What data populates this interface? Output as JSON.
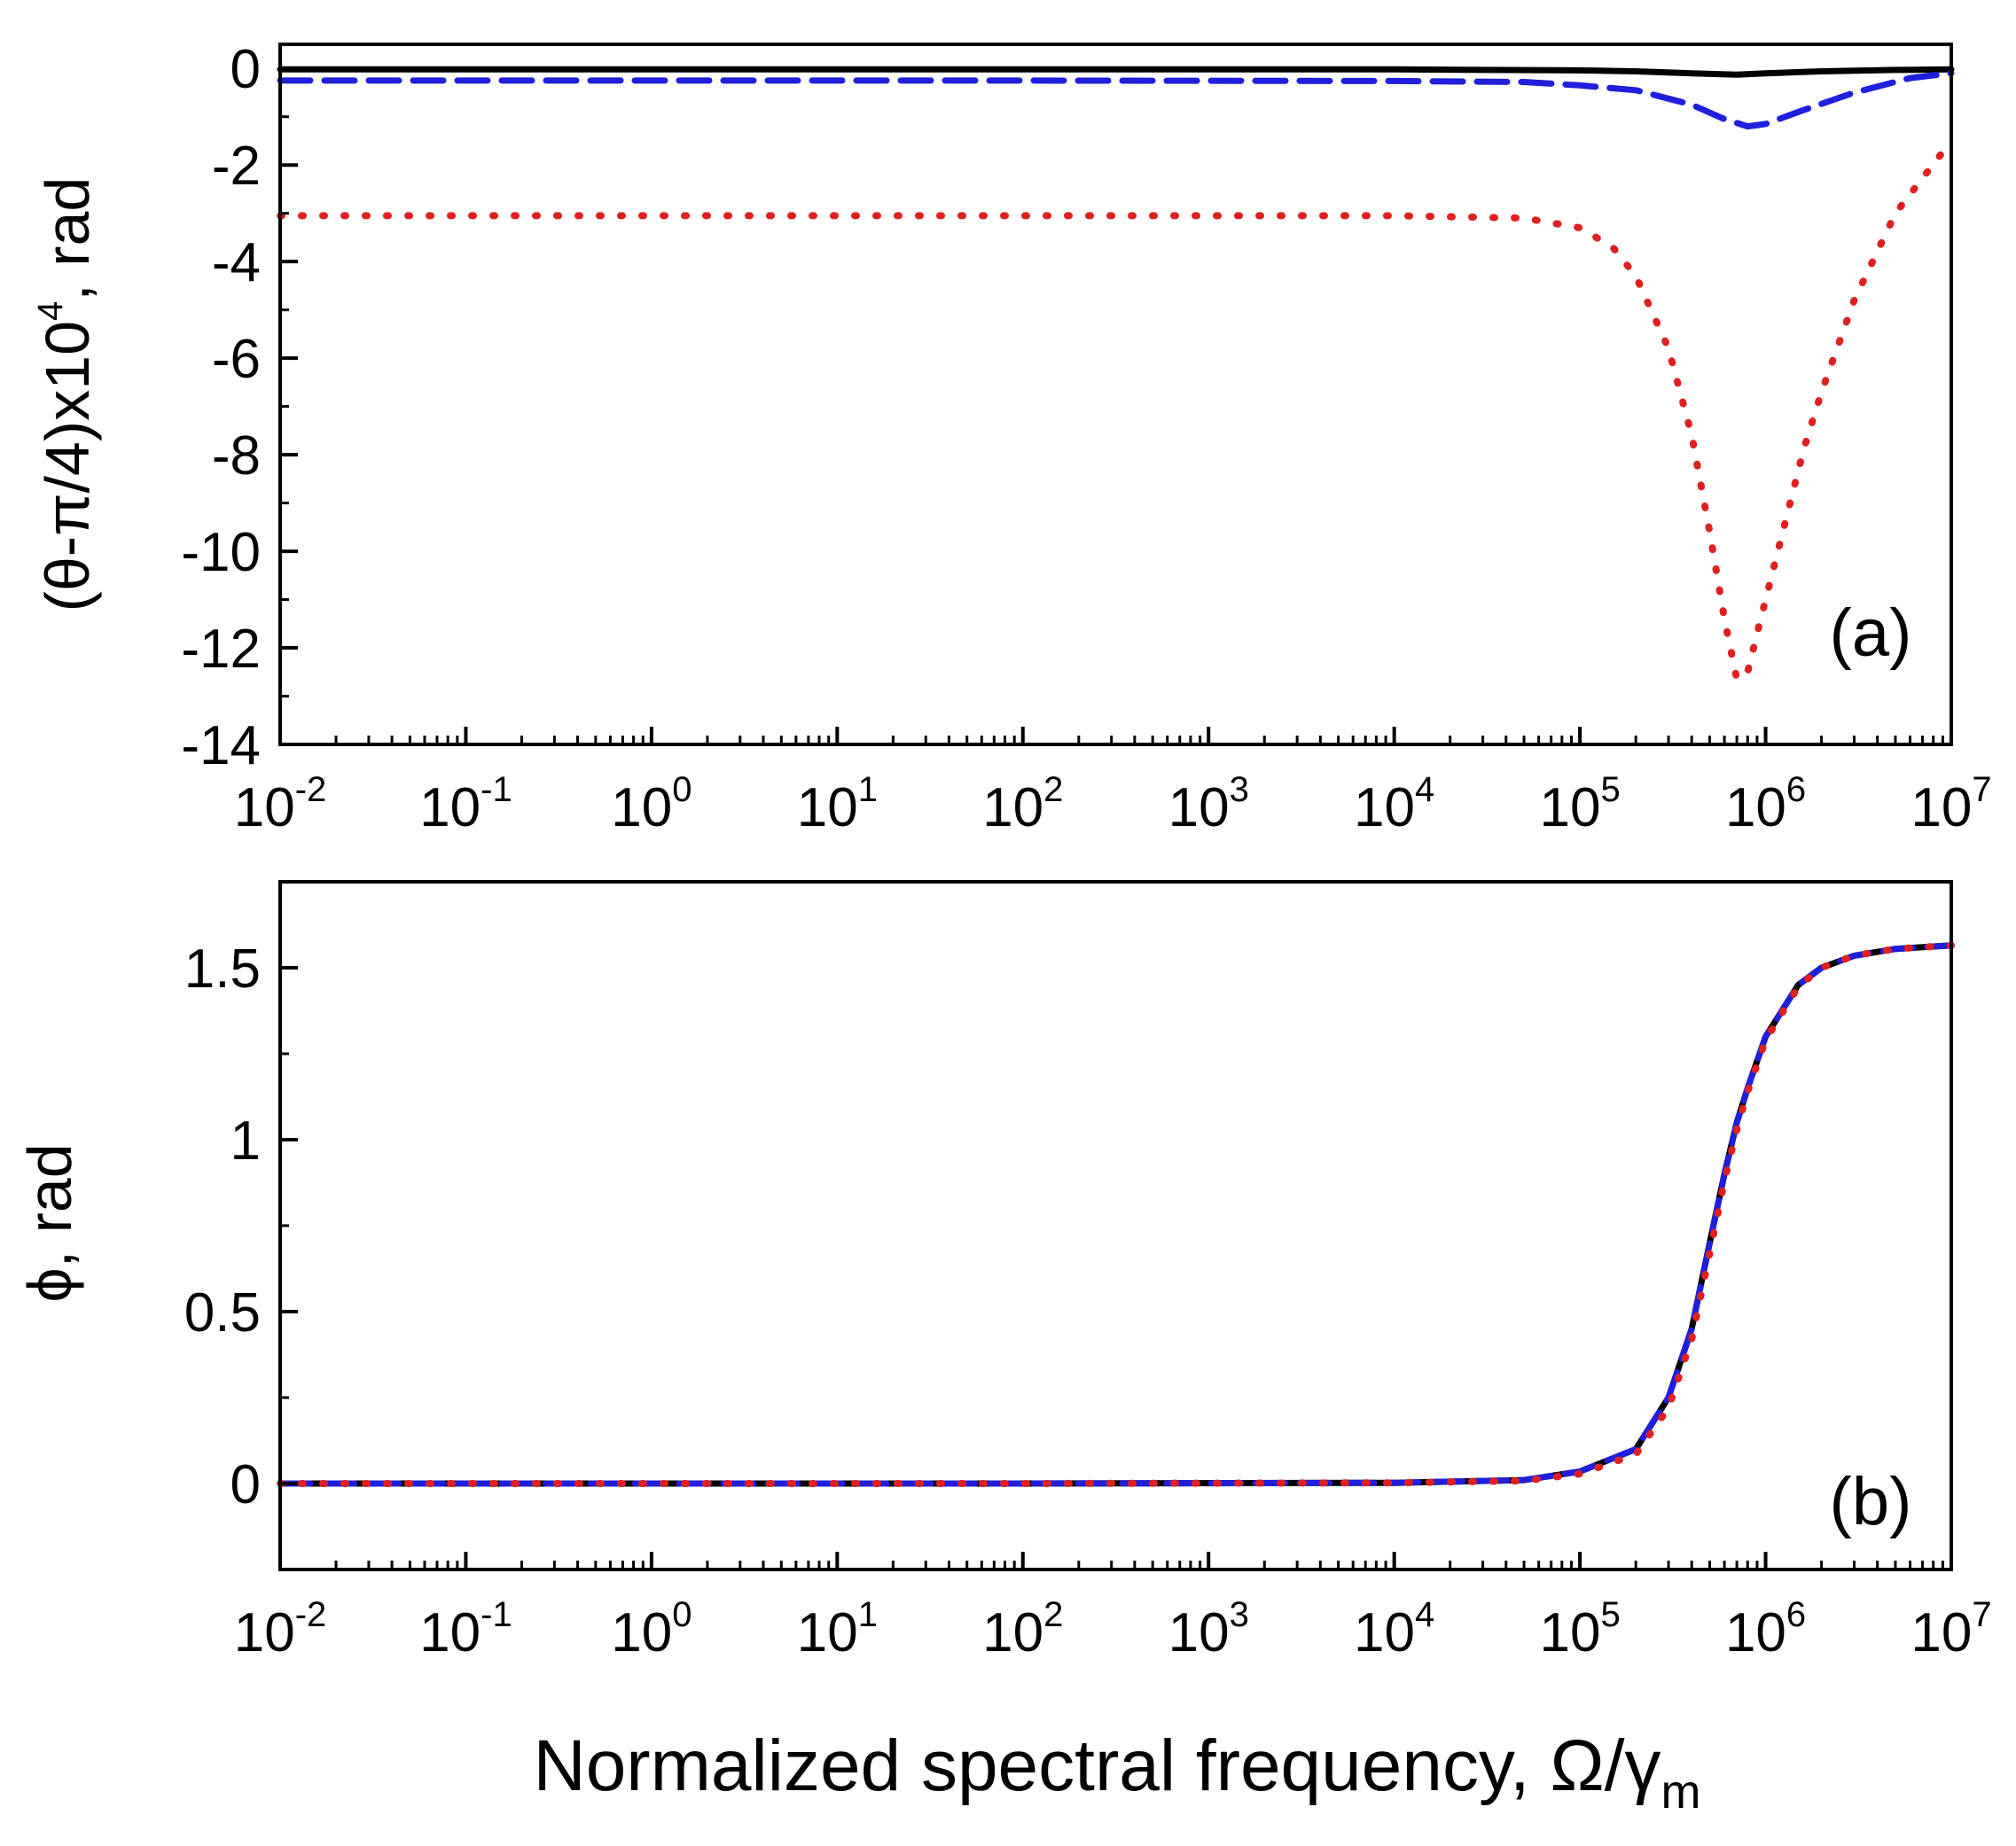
{
  "chart_data": [
    {
      "type": "line",
      "panel_label": "(a)",
      "ylabel": "(θ-π/4)x10",
      "ylabel_exponent": "4",
      "ylabel_unit": ", rad",
      "xscale": "log",
      "xlim": [
        0.01,
        10000000
      ],
      "ylim": [
        -14,
        0.5
      ],
      "yticks": [
        0,
        -2,
        -4,
        -6,
        -8,
        -10,
        -12,
        -14
      ],
      "ytick_labels": [
        "0",
        "-2",
        "-4",
        "-6",
        "-8",
        "-10",
        "-12",
        "-14"
      ],
      "xtick_exponents": [
        "-2",
        "-1",
        "0",
        "1",
        "2",
        "3",
        "4",
        "5",
        "6",
        "7"
      ],
      "series": [
        {
          "name": "solid",
          "color": "#000000",
          "style": "solid",
          "x": [
            0.01,
            1,
            100,
            10000,
            100000,
            200000,
            400000,
            700000,
            1000000,
            2000000,
            5000000,
            10000000
          ],
          "y": [
            -0.02,
            -0.02,
            -0.02,
            -0.02,
            -0.04,
            -0.06,
            -0.1,
            -0.13,
            -0.1,
            -0.06,
            -0.03,
            -0.02
          ]
        },
        {
          "name": "dashed",
          "color": "#1f1fdc",
          "style": "dashed",
          "x": [
            0.01,
            1,
            100,
            10000,
            50000,
            100000,
            200000,
            400000,
            600000,
            800000,
            1000000,
            1500000,
            3000000,
            6000000,
            10000000
          ],
          "y": [
            -0.25,
            -0.25,
            -0.25,
            -0.26,
            -0.28,
            -0.35,
            -0.45,
            -0.75,
            -1.05,
            -1.2,
            -1.15,
            -0.9,
            -0.5,
            -0.2,
            -0.1
          ]
        },
        {
          "name": "dotted",
          "color": "#e02020",
          "style": "dotted",
          "x": [
            0.01,
            1,
            100,
            10000,
            50000,
            100000,
            150000,
            200000,
            300000,
            400000,
            500000,
            600000,
            700000,
            800000,
            900000,
            1200000,
            1600000,
            2000000,
            3000000,
            5000000,
            10000000
          ],
          "y": [
            -3.05,
            -3.05,
            -3.05,
            -3.05,
            -3.1,
            -3.3,
            -3.7,
            -4.3,
            -5.8,
            -7.6,
            -9.6,
            -11.4,
            -12.65,
            -12.5,
            -11.7,
            -9.8,
            -7.9,
            -6.7,
            -4.8,
            -3.0,
            -1.5
          ]
        }
      ]
    },
    {
      "type": "line",
      "panel_label": "(b)",
      "ylabel": "ϕ, rad",
      "xlabel": "Normalized spectral frequency, Ω/γ",
      "xlabel_subscript": "m",
      "xscale": "log",
      "xlim": [
        0.01,
        10000000
      ],
      "ylim": [
        -0.25,
        1.75
      ],
      "yticks": [
        0,
        0.5,
        1,
        1.5
      ],
      "ytick_labels": [
        "0",
        "0.5",
        "1",
        "1.5"
      ],
      "xtick_exponents": [
        "-2",
        "-1",
        "0",
        "1",
        "2",
        "3",
        "4",
        "5",
        "6",
        "7"
      ],
      "series": [
        {
          "name": "solid",
          "color": "#000000",
          "style": "solid",
          "x": [
            0.01,
            1,
            100,
            10000,
            50000,
            100000,
            200000,
            300000,
            400000,
            500000,
            600000,
            700000,
            800000,
            1000000,
            1500000,
            2000000,
            3000000,
            5000000,
            10000000
          ],
          "y": [
            0,
            0,
            0,
            0.002,
            0.01,
            0.035,
            0.1,
            0.25,
            0.45,
            0.7,
            0.9,
            1.05,
            1.15,
            1.3,
            1.45,
            1.5,
            1.535,
            1.555,
            1.565
          ]
        },
        {
          "name": "dashed",
          "color": "#1f1fdc",
          "style": "dashed",
          "x": [
            0.01,
            1,
            100,
            10000,
            50000,
            100000,
            200000,
            300000,
            400000,
            500000,
            600000,
            700000,
            800000,
            1000000,
            1500000,
            2000000,
            3000000,
            5000000,
            10000000
          ],
          "y": [
            0,
            0,
            0,
            0.002,
            0.01,
            0.035,
            0.1,
            0.25,
            0.45,
            0.7,
            0.9,
            1.05,
            1.15,
            1.3,
            1.45,
            1.5,
            1.535,
            1.555,
            1.565
          ]
        },
        {
          "name": "dotted",
          "color": "#e02020",
          "style": "dotted",
          "x": [
            0.01,
            1,
            100,
            10000,
            50000,
            100000,
            200000,
            300000,
            400000,
            500000,
            600000,
            700000,
            800000,
            1000000,
            1500000,
            2000000,
            3000000,
            5000000,
            10000000
          ],
          "y": [
            0,
            0,
            0,
            0.002,
            0.008,
            0.028,
            0.085,
            0.22,
            0.42,
            0.67,
            0.88,
            1.03,
            1.14,
            1.29,
            1.445,
            1.5,
            1.535,
            1.555,
            1.565
          ]
        }
      ]
    }
  ]
}
